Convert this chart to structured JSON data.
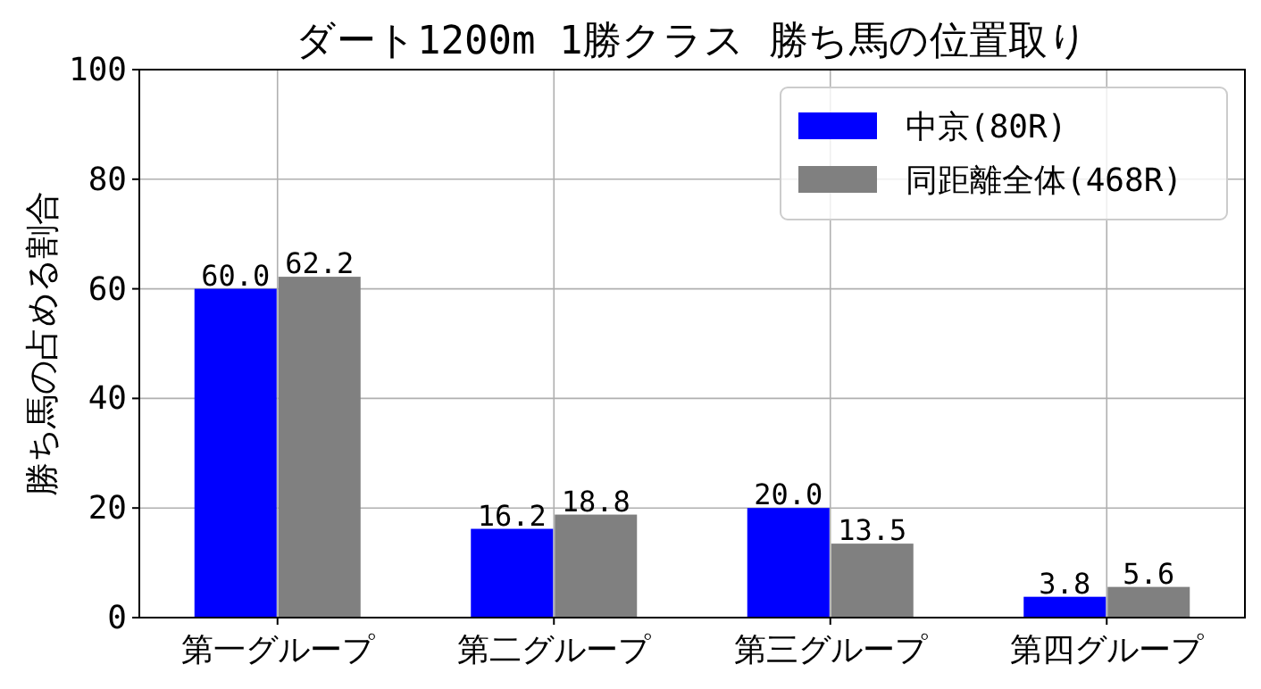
{
  "chart_data": {
    "type": "bar",
    "title": "ダート1200m 1勝クラス 勝ち馬の位置取り",
    "ylabel": "勝ち馬の占める割合",
    "categories": [
      "第一グループ",
      "第二グループ",
      "第三グループ",
      "第四グループ"
    ],
    "series": [
      {
        "name": "中京(80R)",
        "color": "#0000ff",
        "values": [
          60.0,
          16.2,
          20.0,
          3.8
        ],
        "value_labels": [
          "60.0",
          "16.2",
          "20.0",
          "3.8"
        ]
      },
      {
        "name": "同距離全体(468R)",
        "color": "#808080",
        "values": [
          62.2,
          18.8,
          13.5,
          5.6
        ],
        "value_labels": [
          "62.2",
          "18.8",
          "13.5",
          "5.6"
        ]
      }
    ],
    "ylim": [
      0,
      100
    ],
    "yticks": [
      0,
      20,
      40,
      60,
      80,
      100
    ],
    "grid": true,
    "legend": "top right"
  }
}
